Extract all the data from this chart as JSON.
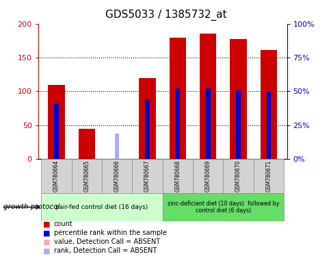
{
  "title": "GDS5033 / 1385732_at",
  "samples": [
    "GSM780664",
    "GSM780665",
    "GSM780666",
    "GSM780667",
    "GSM780668",
    "GSM780669",
    "GSM780670",
    "GSM780671"
  ],
  "count_values": [
    110,
    45,
    null,
    120,
    179,
    185,
    177,
    161
  ],
  "percentile_values": [
    82,
    null,
    null,
    88,
    104,
    104,
    101,
    99
  ],
  "absent_count_values": [
    null,
    null,
    7,
    null,
    null,
    null,
    null,
    null
  ],
  "absent_rank_values": [
    null,
    null,
    19,
    null,
    null,
    null,
    null,
    null
  ],
  "ylim_left": [
    0,
    200
  ],
  "ylim_right": [
    0,
    100
  ],
  "yticks_left": [
    0,
    50,
    100,
    150,
    200
  ],
  "yticks_right": [
    0,
    25,
    50,
    75,
    100
  ],
  "ytick_labels_left": [
    "0",
    "50",
    "100",
    "150",
    "200"
  ],
  "ytick_labels_right": [
    "0%",
    "25%",
    "50%",
    "75%",
    "100%"
  ],
  "group1_label": "pair-fed control diet (16 days)",
  "group2_label": "zinc-deficient diet (10 days)  followed by\ncontrol diet (6 days)",
  "group1_samples": [
    0,
    1,
    2,
    3
  ],
  "group2_samples": [
    4,
    5,
    6,
    7
  ],
  "growth_protocol_label": "growth protocol",
  "color_count": "#cc0000",
  "color_percentile": "#0000cc",
  "color_absent_count": "#ffaaaa",
  "color_absent_rank": "#aaaaff",
  "group1_color": "#ccffcc",
  "group2_color": "#66dd66",
  "bar_width": 0.55,
  "blue_bar_width": 0.15,
  "absent_bar_width": 0.15,
  "legend_items": [
    {
      "label": "count",
      "color": "#cc0000"
    },
    {
      "label": "percentile rank within the sample",
      "color": "#0000cc"
    },
    {
      "label": "value, Detection Call = ABSENT",
      "color": "#ffaaaa"
    },
    {
      "label": "rank, Detection Call = ABSENT",
      "color": "#aaaaff"
    }
  ]
}
